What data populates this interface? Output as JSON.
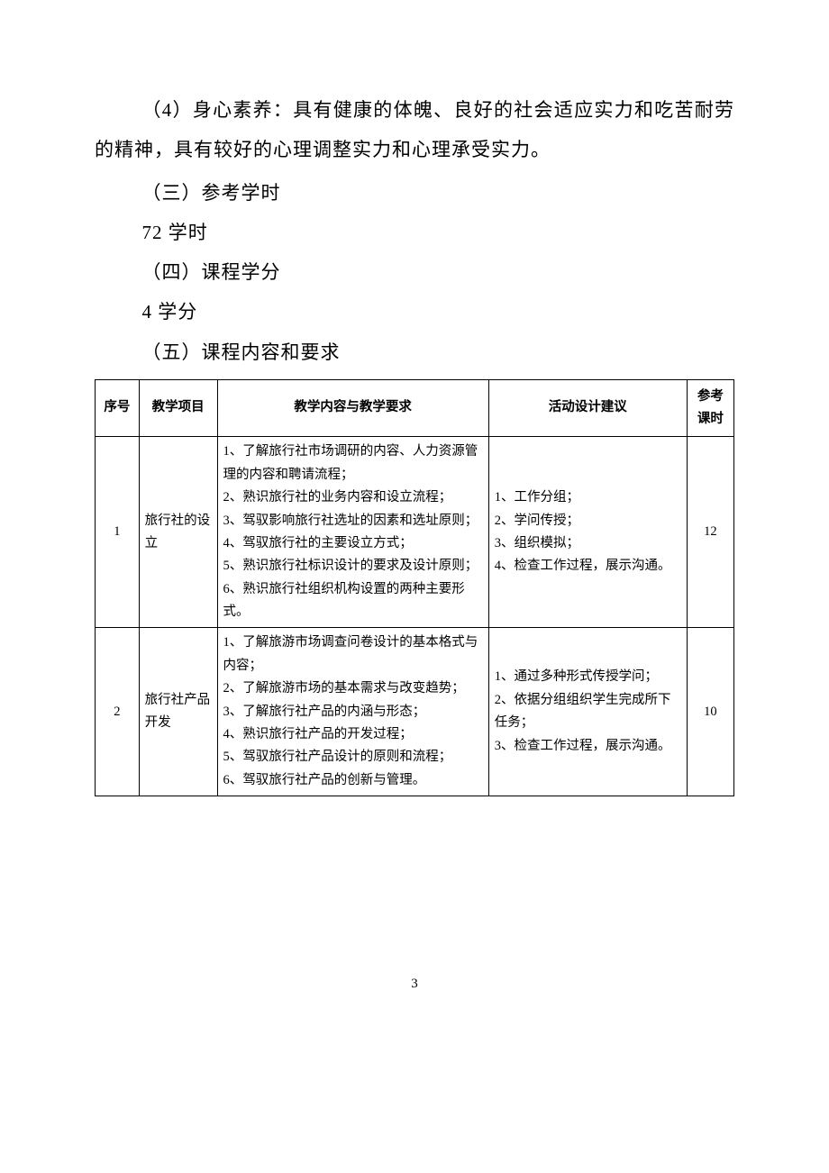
{
  "paragraphs": {
    "p1": "（4）身心素养：具有健康的体魄、良好的社会适应实力和吃苦耐劳的精神，具有较好的心理调整实力和心理承受实力。",
    "p2": "（三）参考学时",
    "p3": "72 学时",
    "p4": "（四）课程学分",
    "p5": "4 学分",
    "p6": "（五）课程内容和要求"
  },
  "table": {
    "headers": {
      "seq": "序号",
      "item": "教学项目",
      "content": "教学内容与教学要求",
      "activity": "活动设计建议",
      "hours": "参考课时"
    },
    "rows": [
      {
        "seq": "1",
        "item": "旅行社的设立",
        "content": "1、了解旅行社市场调研的内容、人力资源管理的内容和聘请流程；\n2、熟识旅行社的业务内容和设立流程；\n3、驾驭影响旅行社选址的因素和选址原则；\n4、驾驭旅行社的主要设立方式；\n5、熟识旅行社标识设计的要求及设计原则；\n6、熟识旅行社组织机构设置的两种主要形式。",
        "activity": "1、工作分组；\n2、学问传授；\n3、组织模拟；\n4、检查工作过程，展示沟通。",
        "hours": "12"
      },
      {
        "seq": "2",
        "item": "旅行社产品开发",
        "content": "1、了解旅游市场调查问卷设计的基本格式与内容；\n2、了解旅游市场的基本需求与改变趋势；\n3、了解旅行社产品的内涵与形态；\n4、熟识旅行社产品的开发过程；\n5、驾驭旅行社产品设计的原则和流程；\n6、驾驭旅行社产品的创新与管理。",
        "activity": "1、通过多种形式传授学问；\n2、依据分组组织学生完成所下任务；\n3、检查工作过程，展示沟通。",
        "hours": "10"
      }
    ]
  },
  "page_number": "3"
}
